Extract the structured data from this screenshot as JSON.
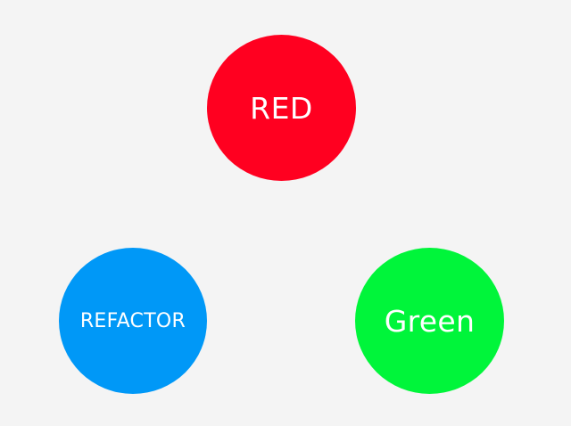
{
  "cycle": {
    "red": {
      "label": "RED",
      "color": "#ff0020"
    },
    "refactor": {
      "label": "REFACTOR",
      "color": "#0098f7"
    },
    "green": {
      "label": "Green",
      "color": "#00f53a"
    }
  },
  "background_color": "#f4f4f4"
}
